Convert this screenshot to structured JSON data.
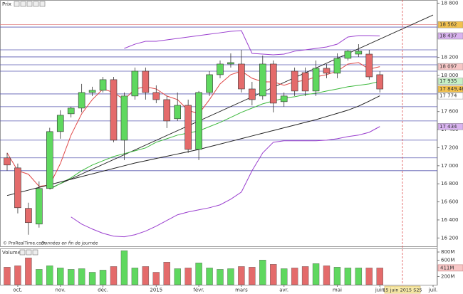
{
  "chart_data": {
    "type": "candlestick",
    "panel_title": "Prix",
    "categories": [
      null,
      "oct.",
      null,
      null,
      null,
      "nov.",
      null,
      null,
      null,
      "déc.",
      null,
      null,
      null,
      null,
      "2015",
      null,
      null,
      null,
      "févr.",
      null,
      null,
      null,
      "mars",
      null,
      null,
      null,
      "avr.",
      null,
      null,
      null,
      null,
      "mai",
      null,
      null,
      null,
      "juin",
      null,
      null,
      null,
      null,
      "juil."
    ],
    "open": [
      17087,
      16976,
      16528,
      16354,
      16748,
      17378,
      17575,
      17638,
      17811,
      17835,
      17953,
      17283,
      17772,
      18047,
      17811,
      17732,
      17520,
      17669,
      17181,
      17811,
      18008,
      18126,
      18126,
      17850,
      17772,
      18126,
      17709,
      18047,
      18031,
      17827,
      18079,
      18024,
      18189,
      18236,
      18236,
      18008,
      null,
      null,
      null,
      null,
      null
    ],
    "high": [
      17142,
      17024,
      16591,
      16827,
      17420,
      17614,
      17654,
      17906,
      17874,
      17984,
      17984,
      17811,
      18087,
      18087,
      17890,
      17772,
      17811,
      17732,
      17827,
      18047,
      18165,
      18244,
      18283,
      17929,
      18220,
      18165,
      17811,
      18087,
      18087,
      18165,
      18126,
      18244,
      18283,
      18346,
      18283,
      18047,
      null,
      null,
      null,
      null,
      null
    ],
    "low": [
      16945,
      16472,
      16236,
      16315,
      16740,
      17299,
      17535,
      17591,
      17772,
      17811,
      17260,
      17063,
      17732,
      17732,
      17693,
      17417,
      17496,
      17142,
      17063,
      17772,
      17969,
      18087,
      17811,
      17669,
      17732,
      17591,
      17654,
      17772,
      17772,
      17772,
      17969,
      17969,
      18165,
      18205,
      17953,
      17811,
      null,
      null,
      null,
      null,
      null
    ],
    "close": [
      17008,
      16535,
      16370,
      16748,
      17378,
      17559,
      17638,
      17811,
      17835,
      17953,
      17283,
      17772,
      18047,
      17811,
      17732,
      17496,
      17669,
      17181,
      17811,
      18008,
      18126,
      18142,
      17850,
      17732,
      18126,
      17693,
      17772,
      17827,
      17827,
      18079,
      18024,
      18189,
      18268,
      18268,
      17984,
      17849.46,
      null,
      null,
      null,
      null,
      null
    ],
    "up_color": "#5fd85f",
    "down_color": "#e46b6b",
    "ylim": [
      16100,
      18835
    ],
    "yticks": [
      {
        "value": 16200,
        "label": "16 200"
      },
      {
        "value": 16400,
        "label": "16 400"
      },
      {
        "value": 16600,
        "label": "16 600"
      },
      {
        "value": 16800,
        "label": "16 800"
      },
      {
        "value": 17000,
        "label": "17 000"
      },
      {
        "value": 17200,
        "label": "17 200"
      },
      {
        "value": 17400,
        "label": "17 400"
      },
      {
        "value": 17600,
        "label": "17 600"
      },
      {
        "value": 18000,
        "label": "18 000"
      },
      {
        "value": 18200,
        "label": "18 200"
      },
      {
        "value": 18800,
        "label": "18 800"
      }
    ],
    "levels": [
      {
        "value": 18562,
        "color": "#e08080"
      },
      {
        "value": 18535,
        "color": "#5a5ab0"
      },
      {
        "value": 18283,
        "color": "#5a5ab0"
      },
      {
        "value": 18205,
        "color": "#5a5ab0"
      },
      {
        "value": 18118,
        "color": "#5a5ab0"
      },
      {
        "value": 18047,
        "color": "#5a5ab0"
      },
      {
        "value": 17795,
        "color": "#5a5ab0"
      },
      {
        "value": 17654,
        "color": "#5a5ab0"
      },
      {
        "value": 17496,
        "color": "#5a5ab0"
      },
      {
        "value": 17283,
        "color": "#5a5ab0"
      },
      {
        "value": 17087,
        "color": "#5a5ab0"
      },
      {
        "value": 16945,
        "color": "#5a5ab0"
      }
    ],
    "trendlines": [
      {
        "points": [
          [
            4,
            16748
          ],
          [
            40,
            18669
          ]
        ],
        "color": "#222222"
      }
    ],
    "overlays": [
      {
        "color": "#e04848",
        "values": [
          17142,
          16945,
          16906,
          16772,
          16787,
          17024,
          17339,
          17575,
          17732,
          17850,
          17811,
          17732,
          17850,
          17874,
          17850,
          17772,
          17732,
          17614,
          17575,
          17732,
          17906,
          18008,
          18047,
          17969,
          17929,
          17929,
          17890,
          17929,
          17945,
          17984,
          18008,
          18047,
          18126,
          18142,
          18070,
          18097,
          null,
          null,
          null,
          null,
          null
        ]
      },
      {
        "color": "#3cb83c",
        "values": [
          null,
          null,
          null,
          null,
          16740,
          16803,
          16866,
          16945,
          17008,
          17055,
          17102,
          17134,
          17165,
          17197,
          17260,
          17299,
          17339,
          17362,
          17386,
          17433,
          17480,
          17535,
          17591,
          17638,
          17685,
          17717,
          17748,
          17764,
          17787,
          17803,
          17827,
          17850,
          17874,
          17890,
          17906,
          17935,
          null,
          null,
          null,
          null,
          null
        ]
      },
      {
        "color": "#222222",
        "values": [
          16670,
          16700,
          16730,
          16760,
          16790,
          16820,
          16850,
          16880,
          16910,
          16940,
          16970,
          17000,
          17030,
          17055,
          17080,
          17105,
          17130,
          17155,
          17180,
          17210,
          17240,
          17270,
          17300,
          17330,
          17360,
          17390,
          17420,
          17450,
          17480,
          17510,
          17545,
          17580,
          17615,
          17660,
          17715,
          17774,
          null,
          null,
          null,
          null,
          null
        ]
      },
      {
        "color": "#9a3fcf",
        "values": [
          null,
          null,
          null,
          null,
          null,
          null,
          null,
          null,
          null,
          null,
          null,
          18299,
          18346,
          18378,
          18378,
          18394,
          18409,
          18425,
          18441,
          18457,
          18472,
          18488,
          18496,
          18244,
          18236,
          18228,
          18236,
          18268,
          18283,
          18299,
          18315,
          18346,
          18425,
          18441,
          18441,
          18437,
          null,
          null,
          null,
          null,
          null
        ]
      },
      {
        "color": "#9a3fcf",
        "values": [
          null,
          null,
          null,
          null,
          null,
          null,
          16433,
          16354,
          16299,
          16252,
          16220,
          16213,
          16236,
          16276,
          16331,
          16394,
          16457,
          16488,
          16512,
          16535,
          16567,
          16630,
          16709,
          16945,
          17142,
          17260,
          17276,
          17276,
          17276,
          17276,
          17283,
          17299,
          17323,
          17339,
          17370,
          17434,
          null,
          null,
          null,
          null,
          null
        ]
      }
    ],
    "price_labels": [
      {
        "value": 18562,
        "label": "18 562",
        "color": "#f2c14e"
      },
      {
        "value": 18437,
        "label": "18 437",
        "color": "#d9b3f0"
      },
      {
        "value": 18097,
        "label": "18 097",
        "color": "#f7c6c6"
      },
      {
        "value": 17935,
        "label": "17 935",
        "color": "#c6f0c6"
      },
      {
        "value": 17849.46,
        "label": "17 849,46",
        "color": "#f2c14e"
      },
      {
        "value": 17774,
        "label": "17 774",
        "color": "#ffffff"
      },
      {
        "value": 17434,
        "label": "17 434",
        "color": "#d9b3f0"
      }
    ],
    "cursor_label": "15 juin 2015 S25",
    "credit": "© ProRealTime.com",
    "credit_note": "Données en fin de journée",
    "volume": {
      "title": "Volume",
      "values": [
        429,
        464,
        658,
        376,
        464,
        411,
        376,
        393,
        305,
        358,
        446,
        834,
        411,
        446,
        305,
        552,
        393,
        411,
        534,
        411,
        376,
        393,
        446,
        429,
        605,
        499,
        393,
        411,
        446,
        517,
        464,
        429,
        411,
        411,
        411,
        411,
        null,
        null,
        null,
        null,
        null
      ],
      "ylim": [
        0,
        870
      ],
      "yticks": [
        {
          "value": 200,
          "label": "200M"
        },
        {
          "value": 600,
          "label": "600M"
        },
        {
          "value": 800,
          "label": "800M"
        }
      ],
      "last_label": {
        "value": 411,
        "label": "411M",
        "color": "#f7c6c6"
      }
    }
  }
}
